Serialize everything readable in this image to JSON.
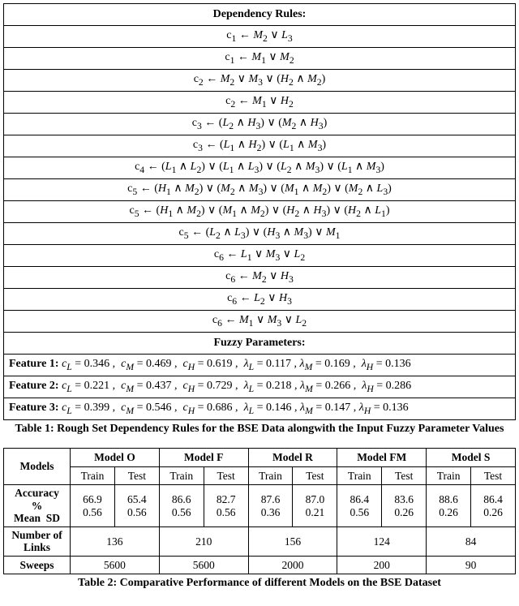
{
  "table1": {
    "header_rules": "Dependency Rules:",
    "rules": [
      "c<sub>1</sub> ← <i>M</i><sub>2</sub> ∨ <i>L</i><sub>3</sub>",
      "c<sub>1</sub> ← <i>M</i><sub>1</sub> ∨ <i>M</i><sub>2</sub>",
      "c<sub>2</sub> ← <i>M</i><sub>2</sub> ∨ <i>M</i><sub>3</sub> ∨ (<i>H</i><sub>2</sub> ∧ <i>M</i><sub>2</sub>)",
      "c<sub>2</sub> ← <i>M</i><sub>1</sub> ∨ <i>H</i><sub>2</sub>",
      "c<sub>3</sub> ← (<i>L</i><sub>2</sub> ∧ <i>H</i><sub>3</sub>) ∨ (<i>M</i><sub>2</sub> ∧ <i>H</i><sub>3</sub>)",
      "c<sub>3</sub> ← (<i>L</i><sub>1</sub> ∧ <i>H</i><sub>2</sub>) ∨ (<i>L</i><sub>1</sub> ∧ <i>M</i><sub>3</sub>)",
      "c<sub>4</sub> ← (<i>L</i><sub>1</sub> ∧ <i>L</i><sub>2</sub>) ∨ (<i>L</i><sub>1</sub> ∧ <i>L</i><sub>3</sub>) ∨ (<i>L</i><sub>2</sub> ∧ <i>M</i><sub>3</sub>) ∨ (<i>L</i><sub>1</sub> ∧ <i>M</i><sub>3</sub>)",
      "c<sub>5</sub> ← (<i>H</i><sub>1</sub> ∧ <i>M</i><sub>2</sub>) ∨ (<i>M</i><sub>2</sub> ∧ <i>M</i><sub>3</sub>) ∨ (<i>M</i><sub>1</sub> ∧ <i>M</i><sub>2</sub>) ∨ (<i>M</i><sub>2</sub> ∧ <i>L</i><sub>3</sub>)",
      "c<sub>5</sub> ← (<i>H</i><sub>1</sub> ∧ <i>M</i><sub>2</sub>) ∨ (<i>M</i><sub>1</sub> ∧ <i>M</i><sub>2</sub>) ∨ (<i>H</i><sub>2</sub> ∧ <i>H</i><sub>3</sub>) ∨ (<i>H</i><sub>2</sub> ∧ <i>L</i><sub>1</sub>)",
      "c<sub>5</sub> ← (<i>L</i><sub>2</sub> ∧ <i>L</i><sub>3</sub>) ∨ (<i>H</i><sub>3</sub> ∧ <i>M</i><sub>3</sub>) ∨ <i>M</i><sub>1</sub>",
      "c<sub>6</sub> ← <i>L</i><sub>1</sub> ∨ <i>M</i><sub>3</sub> ∨ <i>L</i><sub>2</sub>",
      "c<sub>6</sub> ← <i>M</i><sub>2</sub> ∨ <i>H</i><sub>3</sub>",
      "c<sub>6</sub> ← <i>L</i><sub>2</sub> ∨ <i>H</i><sub>3</sub>",
      "c<sub>6</sub> ← <i>M</i><sub>1</sub> ∨ <i>M</i><sub>3</sub> ∨ <i>L</i><sub>2</sub>"
    ],
    "header_params": "Fuzzy Parameters:",
    "features": [
      {
        "label": "Feature 1:",
        "params": "<i>c</i><sub><i>L</i></sub> = 0.346 , &nbsp;<i>c</i><sub><i>M</i></sub> = 0.469 , &nbsp;<i>c</i><sub><i>H</i></sub> = 0.619 , &nbsp;<i>λ</i><sub><i>L</i></sub> = 0.117 , <i>λ</i><sub><i>M</i></sub> = 0.169 , &nbsp;<i>λ</i><sub><i>H</i></sub> = 0.136"
      },
      {
        "label": "Feature 2:",
        "params": "<i>c</i><sub><i>L</i></sub> = 0.221 , &nbsp;<i>c</i><sub><i>M</i></sub> = 0.437 , &nbsp;<i>c</i><sub><i>H</i></sub> = 0.729 , &nbsp;<i>λ</i><sub><i>L</i></sub> = 0.218 , <i>λ</i><sub><i>M</i></sub> = 0.266 , &nbsp;<i>λ</i><sub><i>H</i></sub> = 0.286"
      },
      {
        "label": "Feature 3:",
        "params": "<i>c</i><sub><i>L</i></sub> = 0.399 , &nbsp;<i>c</i><sub><i>M</i></sub> = 0.546 , &nbsp;<i>c</i><sub><i>H</i></sub> = 0.686 , &nbsp;<i>λ</i><sub><i>L</i></sub> = 0.146 , <i>λ</i><sub><i>M</i></sub> = 0.147 , <i>λ</i><sub><i>H</i></sub> = 0.136"
      }
    ],
    "caption": "Table 1: Rough Set Dependency Rules for the BSE Data alongwith the Input Fuzzy Parameter Values"
  },
  "table2": {
    "cols": {
      "models": "Models",
      "m": [
        "Model O",
        "Model F",
        "Model R",
        "Model FM",
        "Model S"
      ],
      "train": "Train",
      "test": "Test"
    },
    "rows": [
      {
        "label": "Accuracy<br>%<br>Mean&nbsp;&nbsp;SD",
        "vals": [
          [
            "66.9<br>0.56",
            "65.4<br>0.56"
          ],
          [
            "86.6<br>0.56",
            "82.7<br>0.56"
          ],
          [
            "87.6<br>0.36",
            "87.0<br>0.21"
          ],
          [
            "86.4<br>0.56",
            "83.6<br>0.26"
          ],
          [
            "88.6<br>0.26",
            "86.4<br>0.26"
          ]
        ]
      },
      {
        "label": "Number of<br>Links",
        "merged": [
          "136",
          "210",
          "156",
          "124",
          "84"
        ]
      },
      {
        "label": "Sweeps",
        "merged": [
          "5600",
          "5600",
          "2000",
          "200",
          "90"
        ]
      }
    ],
    "caption": "Table 2: Comparative Performance of different Models on the BSE Dataset"
  }
}
